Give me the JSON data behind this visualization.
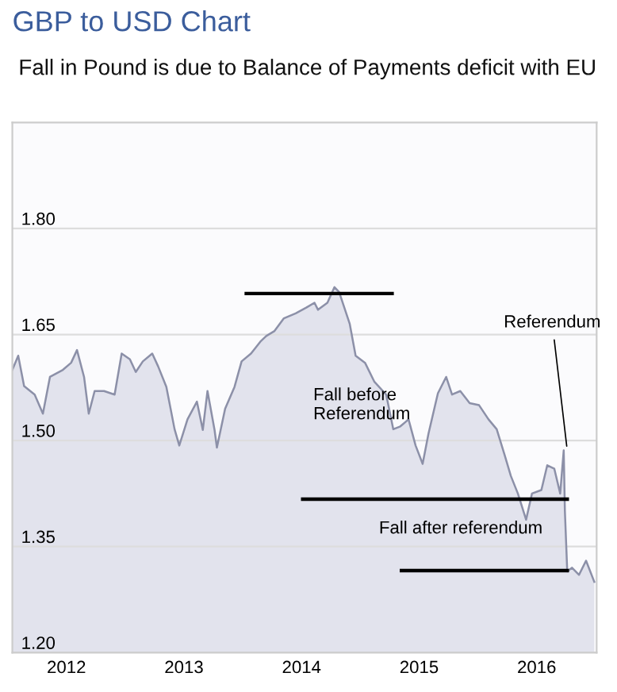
{
  "chart_data": {
    "type": "area",
    "title": "GBP to USD Chart",
    "subtitle": "Fall in Pound is due to Balance of Payments deficit with EU",
    "x": [
      2011.54,
      2011.59,
      2011.64,
      2011.73,
      2011.8,
      2011.86,
      2011.97,
      2012.04,
      2012.09,
      2012.15,
      2012.19,
      2012.24,
      2012.32,
      2012.41,
      2012.47,
      2012.54,
      2012.59,
      2012.65,
      2012.73,
      2012.78,
      2012.85,
      2012.92,
      2012.96,
      2013.03,
      2013.11,
      2013.16,
      2013.2,
      2013.26,
      2013.28,
      2013.35,
      2013.43,
      2013.49,
      2013.57,
      2013.65,
      2013.7,
      2013.77,
      2013.85,
      2013.95,
      2014.04,
      2014.11,
      2014.14,
      2014.22,
      2014.28,
      2014.32,
      2014.41,
      2014.46,
      2014.54,
      2014.62,
      2014.72,
      2014.78,
      2014.84,
      2014.91,
      2014.97,
      2015.03,
      2015.08,
      2015.16,
      2015.23,
      2015.28,
      2015.35,
      2015.43,
      2015.51,
      2015.59,
      2015.66,
      2015.73,
      2015.78,
      2015.84,
      2015.91,
      2015.96,
      2016.04,
      2016.09,
      2016.15,
      2016.2,
      2016.23,
      2016.24,
      2016.26,
      2016.3,
      2016.36,
      2016.42,
      2016.49
    ],
    "series": [
      {
        "color": "#8c90a8",
        "values": [
          1.6,
          1.62,
          1.577,
          1.565,
          1.538,
          1.59,
          1.6,
          1.61,
          1.628,
          1.59,
          1.538,
          1.57,
          1.57,
          1.565,
          1.623,
          1.615,
          1.597,
          1.612,
          1.623,
          1.605,
          1.576,
          1.516,
          1.493,
          1.53,
          1.555,
          1.515,
          1.57,
          1.515,
          1.49,
          1.545,
          1.576,
          1.612,
          1.623,
          1.64,
          1.648,
          1.655,
          1.673,
          1.68,
          1.688,
          1.695,
          1.685,
          1.695,
          1.717,
          1.71,
          1.665,
          1.62,
          1.61,
          1.583,
          1.565,
          1.516,
          1.52,
          1.53,
          1.493,
          1.467,
          1.51,
          1.567,
          1.59,
          1.565,
          1.57,
          1.553,
          1.55,
          1.53,
          1.516,
          1.478,
          1.45,
          1.425,
          1.388,
          1.425,
          1.43,
          1.465,
          1.46,
          1.425,
          1.486,
          1.4,
          1.315,
          1.32,
          1.31,
          1.33,
          1.3
        ]
      },
      {
        "type": "line",
        "color": "#000000",
        "x": [
          2013.53,
          2014.77
        ],
        "values": [
          1.708,
          1.708
        ]
      },
      {
        "type": "line",
        "color": "#000000",
        "x": [
          2014.01,
          2016.26
        ],
        "values": [
          1.417,
          1.417
        ]
      },
      {
        "type": "line",
        "color": "#000000",
        "x": [
          2014.85,
          2016.26
        ],
        "values": [
          1.316,
          1.316
        ]
      }
    ],
    "xlim": [
      2011.54,
      2016.51
    ],
    "ylim": [
      1.2,
      1.95
    ],
    "xticks": [
      {
        "value": 2012,
        "label": "2012"
      },
      {
        "value": 2013,
        "label": "2013"
      },
      {
        "value": 2014,
        "label": "2014"
      },
      {
        "value": 2015,
        "label": "2015"
      },
      {
        "value": 2016,
        "label": "2016"
      }
    ],
    "yticks": [
      {
        "value": 1.2,
        "label": "1.20"
      },
      {
        "value": 1.35,
        "label": "1.35"
      },
      {
        "value": 1.5,
        "label": "1.50"
      },
      {
        "value": 1.65,
        "label": "1.65"
      },
      {
        "value": 1.8,
        "label": "1.80"
      }
    ],
    "grid": "y",
    "annotations": [
      {
        "text": "Referendum",
        "x": 2016.26,
        "y": 1.486
      },
      "Fall before\nReferendum",
      "Fall after referendum"
    ]
  }
}
